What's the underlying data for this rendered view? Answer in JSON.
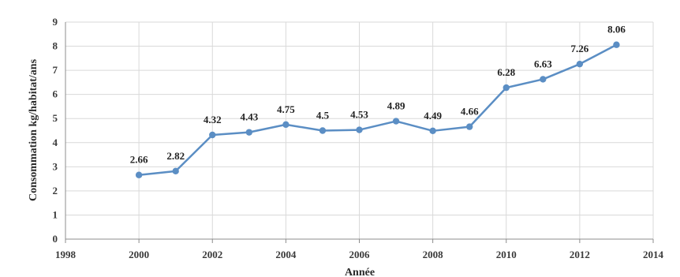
{
  "chart_data": {
    "type": "line",
    "title": "",
    "xlabel": "Année",
    "ylabel": "Consommation kg/habitat/ans",
    "xlim": [
      1998,
      2014
    ],
    "ylim": [
      0,
      9
    ],
    "x_ticks": [
      "1998",
      "2000",
      "2002",
      "2004",
      "2006",
      "2008",
      "2010",
      "2012",
      "2014"
    ],
    "y_ticks": [
      "0",
      "1",
      "2",
      "3",
      "4",
      "5",
      "6",
      "7",
      "8",
      "9"
    ],
    "grid": true,
    "legend": "none",
    "series": [
      {
        "color": "#5b8ec4",
        "x": [
          2000,
          2001,
          2002,
          2003,
          2004,
          2005,
          2006,
          2007,
          2008,
          2009,
          2010,
          2011,
          2012,
          2013
        ],
        "y": [
          2.66,
          2.82,
          4.32,
          4.43,
          4.75,
          4.5,
          4.53,
          4.89,
          4.49,
          4.66,
          6.28,
          6.63,
          7.26,
          8.06
        ],
        "labels": [
          "2.66",
          "2.82",
          "4.32",
          "4.43",
          "4.75",
          "4.5",
          "4.53",
          "4.89",
          "4.49",
          "4.66",
          "6.28",
          "6.63",
          "7.26",
          "8.06"
        ]
      }
    ]
  }
}
